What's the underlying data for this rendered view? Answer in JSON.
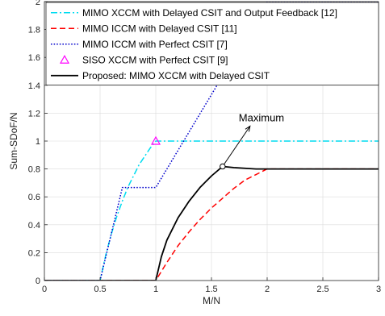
{
  "chart_data": {
    "type": "line",
    "xlabel": "M/N",
    "ylabel": "Sum-SDoF/N",
    "xlim": [
      0,
      3
    ],
    "ylim": [
      0,
      2
    ],
    "xticks": [
      0,
      0.5,
      1,
      1.5,
      2,
      2.5,
      3
    ],
    "xtick_labels": [
      "0",
      "0.5",
      "1",
      "1.5",
      "2",
      "2.5",
      "3"
    ],
    "yticks": [
      0,
      0.2,
      0.4,
      0.6,
      0.8,
      1,
      1.2,
      1.4,
      1.6,
      1.8,
      2
    ],
    "ytick_labels": [
      "0",
      "0.2",
      "0.4",
      "0.6",
      "0.8",
      "1",
      "1.2",
      "1.4",
      "1.6",
      "1.8",
      "2"
    ],
    "grid": true,
    "legend_position": "top-left",
    "series": [
      {
        "name": "MIMO XCCM with Delayed CSIT and Output Feedback [12]",
        "color": "#00dcf0",
        "style": "dashdot",
        "x": [
          0,
          0.5,
          0.55,
          0.6,
          0.65,
          0.7,
          0.75,
          0.8,
          0.85,
          0.9,
          0.95,
          1,
          3
        ],
        "y": [
          0,
          0,
          0.18,
          0.33,
          0.46,
          0.57,
          0.67,
          0.75,
          0.83,
          0.89,
          0.95,
          1,
          1
        ]
      },
      {
        "name": "MIMO ICCM with Delayed CSIT [11]",
        "color": "#ff0000",
        "style": "dashed",
        "x": [
          0,
          1,
          1.1,
          1.2,
          1.3,
          1.4,
          1.5,
          1.6,
          1.7,
          1.8,
          1.9,
          2,
          3
        ],
        "y": [
          0,
          0,
          0.13,
          0.25,
          0.35,
          0.44,
          0.52,
          0.59,
          0.66,
          0.72,
          0.76,
          0.8,
          0.8
        ]
      },
      {
        "name": "MIMO ICCM with Perfect CSIT [7]",
        "color": "#0000cc",
        "style": "dotted",
        "x": [
          0,
          0.5,
          0.5,
          0.7,
          1,
          2,
          3
        ],
        "y": [
          0,
          0,
          0,
          0.667,
          0.667,
          2,
          2
        ]
      },
      {
        "name": "SISO XCCM with Perfect CSIT [9]",
        "color": "#ff00ff",
        "style": "marker-triangle",
        "x": [
          1
        ],
        "y": [
          1
        ]
      },
      {
        "name": "Proposed: MIMO XCCM with Delayed CSIT",
        "color": "#000000",
        "style": "solid",
        "x": [
          0,
          1,
          1.05,
          1.1,
          1.2,
          1.3,
          1.4,
          1.5,
          1.6,
          1.7,
          1.8,
          1.9,
          2,
          3
        ],
        "y": [
          0,
          0,
          0.17,
          0.29,
          0.45,
          0.57,
          0.67,
          0.75,
          0.818,
          0.81,
          0.805,
          0.8,
          0.8,
          0.8
        ]
      }
    ],
    "annotations": [
      {
        "text": "Maximum",
        "x": 1.6,
        "y": 0.818,
        "marker": "circle"
      }
    ]
  }
}
